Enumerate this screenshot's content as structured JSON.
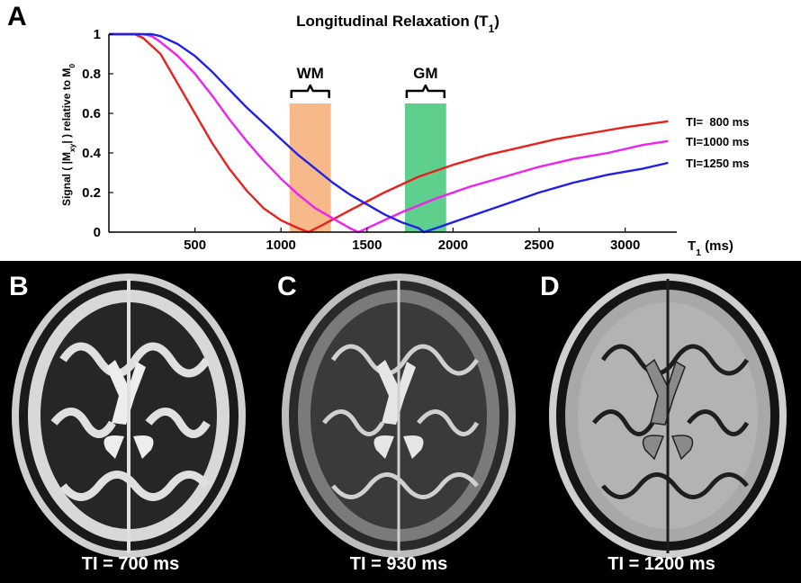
{
  "panels": {
    "a": "A",
    "b": "B",
    "c": "C",
    "d": "D"
  },
  "chart_data": {
    "type": "line",
    "title": "Longitudinal Relaxation (T1)",
    "xlabel": "T1 (ms)",
    "ylabel": "Signal ( |Mxy| ) relative to M0",
    "xlim": [
      0,
      3300
    ],
    "ylim": [
      0,
      1
    ],
    "x_ticks": [
      500,
      1000,
      1500,
      2000,
      2500,
      3000
    ],
    "y_ticks": [
      0,
      0.2,
      0.4,
      0.6,
      0.8,
      1
    ],
    "y_tick_labels": [
      "0",
      "0.2",
      "0.4",
      "0.6",
      "0.8",
      "1"
    ],
    "grid": false,
    "series": [
      {
        "name": "TI=  800 ms",
        "color": "#e8211e",
        "x": [
          0,
          150,
          200,
          300,
          400,
          500,
          600,
          700,
          800,
          900,
          1000,
          1100,
          1160,
          1250,
          1400,
          1600,
          1800,
          2000,
          2200,
          2400,
          2600,
          2800,
          3000,
          3250
        ],
        "y": [
          1.0,
          1.0,
          0.98,
          0.9,
          0.75,
          0.6,
          0.45,
          0.32,
          0.21,
          0.12,
          0.06,
          0.02,
          0.0,
          0.04,
          0.11,
          0.2,
          0.28,
          0.34,
          0.39,
          0.43,
          0.47,
          0.5,
          0.53,
          0.56
        ]
      },
      {
        "name": "TI=1000 ms",
        "color": "#ee22ee",
        "x": [
          0,
          150,
          200,
          250,
          300,
          400,
          500,
          600,
          700,
          800,
          900,
          1000,
          1100,
          1200,
          1300,
          1400,
          1450,
          1550,
          1700,
          1900,
          2100,
          2300,
          2500,
          2700,
          2900,
          3100,
          3250
        ],
        "y": [
          1.0,
          1.0,
          1.0,
          0.99,
          0.96,
          0.89,
          0.8,
          0.69,
          0.57,
          0.46,
          0.36,
          0.27,
          0.19,
          0.12,
          0.07,
          0.02,
          0.0,
          0.04,
          0.1,
          0.17,
          0.23,
          0.28,
          0.33,
          0.37,
          0.4,
          0.44,
          0.46
        ]
      },
      {
        "name": "TI=1250 ms",
        "color": "#1f22e6",
        "x": [
          0,
          150,
          200,
          250,
          300,
          400,
          500,
          600,
          700,
          800,
          900,
          1000,
          1100,
          1200,
          1300,
          1400,
          1500,
          1600,
          1700,
          1800,
          1830,
          1900,
          2100,
          2300,
          2500,
          2700,
          2900,
          3100,
          3250
        ],
        "y": [
          1.0,
          1.0,
          1.0,
          1.0,
          0.99,
          0.95,
          0.89,
          0.81,
          0.72,
          0.63,
          0.55,
          0.47,
          0.39,
          0.32,
          0.25,
          0.19,
          0.14,
          0.09,
          0.05,
          0.02,
          0.0,
          0.02,
          0.08,
          0.14,
          0.2,
          0.25,
          0.29,
          0.32,
          0.35
        ]
      }
    ],
    "bands": [
      {
        "label": "WM",
        "x0": 1050,
        "x1": 1290,
        "y_top": 0.65,
        "color": "#f7b98a"
      },
      {
        "label": "GM",
        "x0": 1720,
        "x1": 1960,
        "y_top": 0.65,
        "color": "#5ecf8c"
      }
    ]
  },
  "images": [
    {
      "panel": "B",
      "caption": "TI = 700 ms",
      "tone": "t2-like"
    },
    {
      "panel": "C",
      "caption": "TI = 930 ms",
      "tone": "wm-null"
    },
    {
      "panel": "D",
      "caption": "TI = 1200 ms",
      "tone": "gm-null"
    }
  ]
}
